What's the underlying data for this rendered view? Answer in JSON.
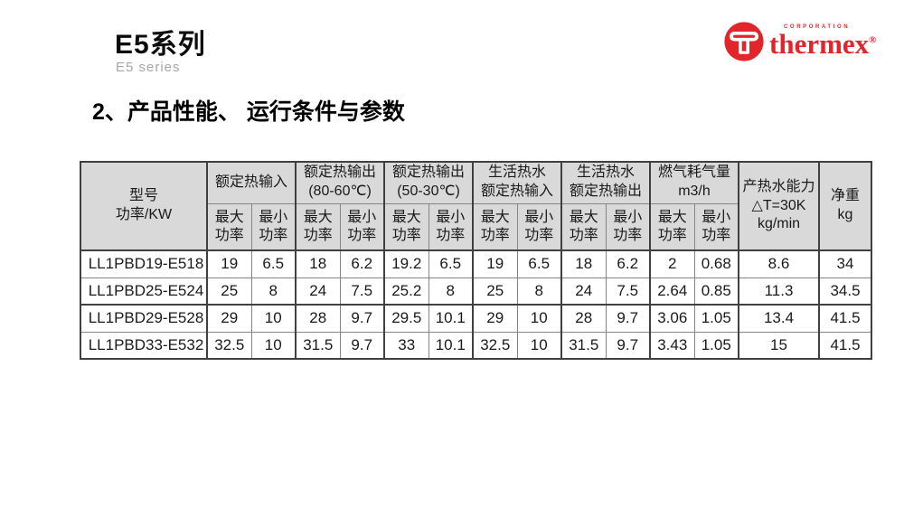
{
  "page": {
    "title_cn": "E5系列",
    "title_en": "E5 series",
    "section_heading": "2、产品性能、 运行条件与参数"
  },
  "logo": {
    "corporation": "CORPORATION",
    "brand": "thermex",
    "registered": "®",
    "brand_color": "#e1252b"
  },
  "table": {
    "header_bg": "#d9d9d9",
    "model_header": "型号\n功率/KW",
    "groups": [
      "额定热输入",
      "额定热输出\n(80-60℃)",
      "额定热输出\n(50-30℃)",
      "生活热水\n额定热输入",
      "生活热水\n额定热输出",
      "燃气耗气量\nm3/h"
    ],
    "sub_headers": [
      "最大\n功率",
      "最小\n功率"
    ],
    "capacity_header": "产热水能力\n△T=30K\nkg/min",
    "weight_header": "净重\nkg",
    "rows": [
      {
        "model": "LL1PBD19-E518",
        "values": [
          "19",
          "6.5",
          "18",
          "6.2",
          "19.2",
          "6.5",
          "19",
          "6.5",
          "18",
          "6.2",
          "2",
          "0.68",
          "8.6",
          "34"
        ]
      },
      {
        "model": "LL1PBD25-E524",
        "values": [
          "25",
          "8",
          "24",
          "7.5",
          "25.2",
          "8",
          "25",
          "8",
          "24",
          "7.5",
          "2.64",
          "0.85",
          "11.3",
          "34.5"
        ]
      },
      {
        "model": "LL1PBD29-E528",
        "values": [
          "29",
          "10",
          "28",
          "9.7",
          "29.5",
          "10.1",
          "29",
          "10",
          "28",
          "9.7",
          "3.06",
          "1.05",
          "13.4",
          "41.5"
        ]
      },
      {
        "model": "LL1PBD33-E532",
        "values": [
          "32.5",
          "10",
          "31.5",
          "9.7",
          "33",
          "10.1",
          "32.5",
          "10",
          "31.5",
          "9.7",
          "3.43",
          "1.05",
          "15",
          "41.5"
        ]
      }
    ]
  }
}
